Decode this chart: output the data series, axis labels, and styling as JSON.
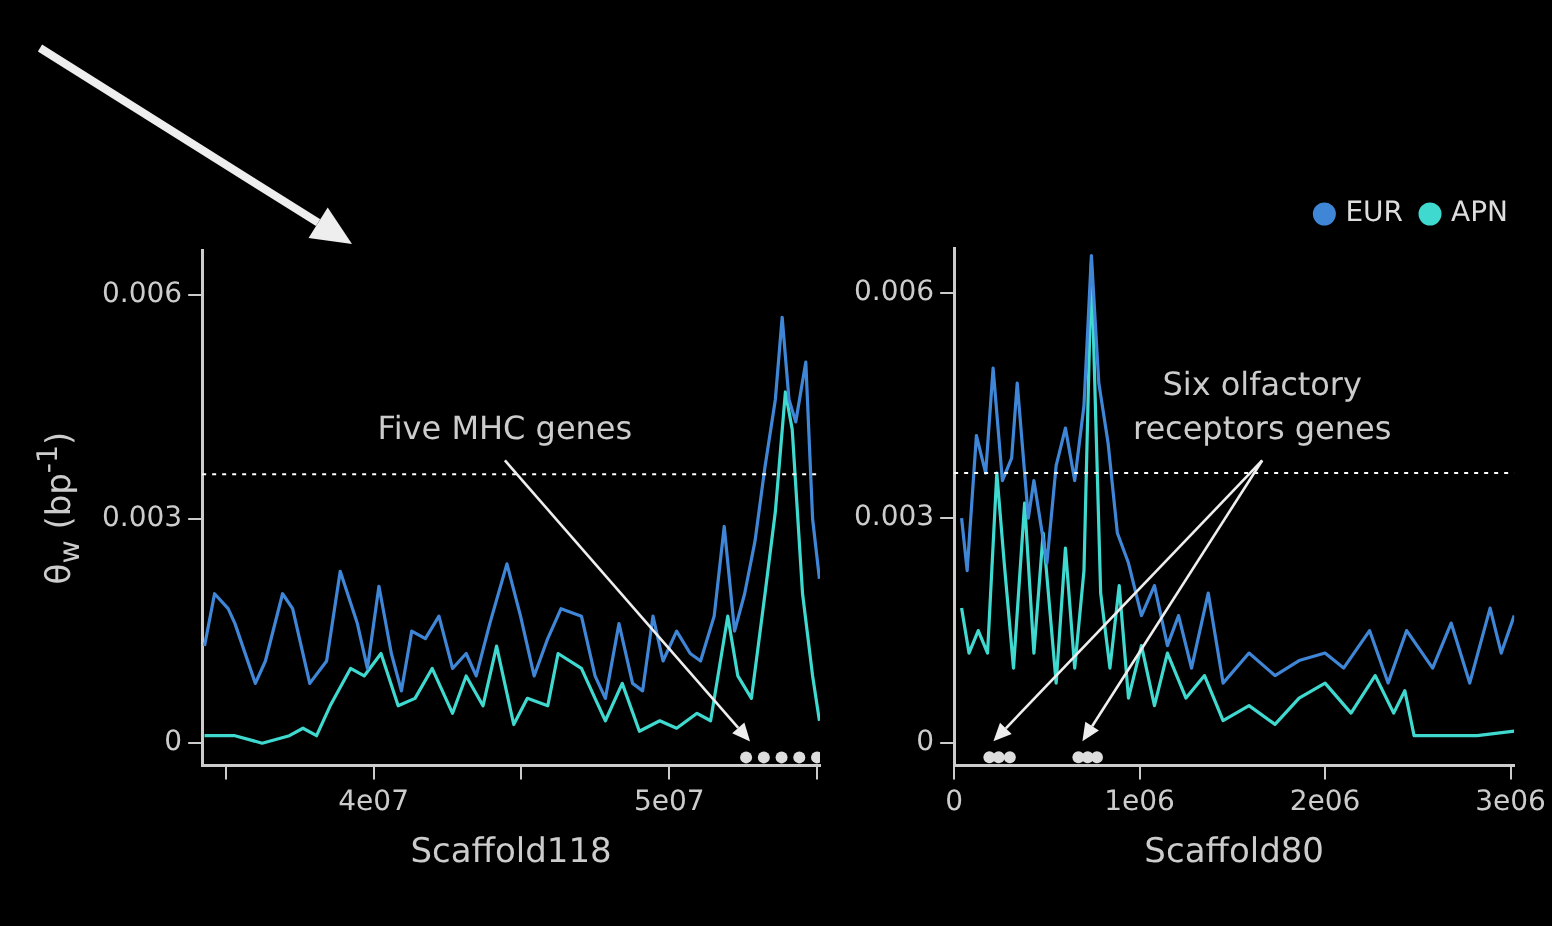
{
  "chart_data": [
    {
      "type": "line",
      "xlabel": "Scaffold118",
      "ylabel": "θ$_{w}$ (bp$^{-1}$)",
      "grid": false,
      "xlim": [
        34200000,
        55100000
      ],
      "ylim": [
        -0.0003,
        0.0066
      ],
      "xticks": [
        {
          "value": 35000000,
          "label": null
        },
        {
          "value": 40000000,
          "label": "4e07"
        },
        {
          "value": 45000000,
          "label": null
        },
        {
          "value": 50000000,
          "label": "5e07"
        },
        {
          "value": 55000000,
          "label": null
        }
      ],
      "yticks": [
        0,
        0.003,
        0.006
      ],
      "ref_lines": [
        {
          "axis": "y",
          "value": 0.0036,
          "color": "#ffffff",
          "line_style": "dotted"
        }
      ],
      "annotations": [
        "Five MHC genes"
      ],
      "series": [
        {
          "color": "#3f86d6",
          "x": [
            34280000,
            34620000,
            35080000,
            35310000,
            36000000,
            36340000,
            36920000,
            37260000,
            37840000,
            38410000,
            38870000,
            39450000,
            39790000,
            40180000,
            40600000,
            40940000,
            41290000,
            41750000,
            42210000,
            42670000,
            43130000,
            43470000,
            43930000,
            44510000,
            44970000,
            45430000,
            45890000,
            46340000,
            47030000,
            47490000,
            47840000,
            48300000,
            48760000,
            49100000,
            49450000,
            49790000,
            50250000,
            50710000,
            51060000,
            51520000,
            51860000,
            52210000,
            52550000,
            52900000,
            53240000,
            53590000,
            53820000,
            54050000,
            54280000,
            54620000,
            54850000,
            55080000
          ],
          "values": [
            0.0013,
            0.002,
            0.0018,
            0.0016,
            0.0008,
            0.0011,
            0.002,
            0.0018,
            0.0008,
            0.0011,
            0.0023,
            0.0016,
            0.001,
            0.0021,
            0.0012,
            0.0007,
            0.0015,
            0.0014,
            0.0017,
            0.001,
            0.0012,
            0.0009,
            0.0016,
            0.0024,
            0.0017,
            0.0009,
            0.0014,
            0.0018,
            0.0017,
            0.0009,
            0.0006,
            0.0016,
            0.0008,
            0.0007,
            0.0017,
            0.0011,
            0.0015,
            0.0012,
            0.0011,
            0.0017,
            0.0029,
            0.0015,
            0.002,
            0.0027,
            0.0037,
            0.0046,
            0.0057,
            0.0046,
            0.0043,
            0.0051,
            0.003,
            0.0022
          ]
        },
        {
          "color": "#3fd9cf",
          "x": [
            34280000,
            35310000,
            36230000,
            37150000,
            37610000,
            38070000,
            38530000,
            39220000,
            39680000,
            40250000,
            40830000,
            41400000,
            41980000,
            42670000,
            43130000,
            43700000,
            44160000,
            44740000,
            45200000,
            45890000,
            46240000,
            47030000,
            47490000,
            47840000,
            48410000,
            48990000,
            49680000,
            50250000,
            50940000,
            51400000,
            51980000,
            52320000,
            52780000,
            53240000,
            53590000,
            53930000,
            54160000,
            54510000,
            54850000,
            55080000
          ],
          "values": [
            0.0001,
            0.0001,
            0,
            0.0001,
            0.0002,
            0.0001,
            0.0005,
            0.001,
            0.0009,
            0.0012,
            0.0005,
            0.0006,
            0.001,
            0.0004,
            0.0009,
            0.0005,
            0.0013,
            0.00025,
            0.0006,
            0.0005,
            0.0012,
            0.001,
            0.0006,
            0.0003,
            0.0008,
            0.00016,
            0.0003,
            0.0002,
            0.0004,
            0.0003,
            0.0017,
            0.0009,
            0.0006,
            0.002,
            0.0031,
            0.0047,
            0.0042,
            0.002,
            0.0009,
            0.0003
          ]
        },
        {
          "type": "scatter",
          "marker": "circle",
          "color": "#dddddd",
          "x": [
            52600000,
            53200000,
            53800000,
            54400000,
            55000000
          ],
          "values": [
            -0.00019,
            -0.00019,
            -0.00019,
            -0.00019,
            -0.00019
          ]
        }
      ]
    },
    {
      "type": "line",
      "xlabel": "Scaffold80",
      "grid": false,
      "legend": "top right",
      "xlim": [
        0,
        3020000
      ],
      "ylim": [
        -0.0003,
        0.0066
      ],
      "xticks": [
        0,
        {
          "value": 1000000,
          "label": "1e06"
        },
        {
          "value": 2000000,
          "label": "2e06"
        },
        {
          "value": 3000000,
          "label": "3e06"
        }
      ],
      "yticks": [
        0,
        0.003,
        0.006
      ],
      "ref_lines": [
        {
          "axis": "y",
          "value": 0.0036,
          "color": "#ffffff",
          "line_style": "dotted"
        }
      ],
      "annotations": [
        "Six olfactory\nreceptors genes"
      ],
      "series": [
        {
          "name": "EUR",
          "color": "#3f86d6",
          "x": [
            40000,
            70000,
            120000,
            170000,
            210000,
            260000,
            310000,
            340000,
            400000,
            430000,
            500000,
            550000,
            600000,
            650000,
            700000,
            740000,
            780000,
            830000,
            880000,
            940000,
            1010000,
            1080000,
            1150000,
            1210000,
            1280000,
            1370000,
            1450000,
            1590000,
            1730000,
            1860000,
            2000000,
            2100000,
            2240000,
            2340000,
            2440000,
            2580000,
            2680000,
            2780000,
            2890000,
            2950000,
            3020000
          ],
          "values": [
            0.003,
            0.0023,
            0.0041,
            0.0036,
            0.005,
            0.0035,
            0.0038,
            0.0048,
            0.003,
            0.0035,
            0.0024,
            0.0037,
            0.0042,
            0.0035,
            0.0045,
            0.0065,
            0.0048,
            0.004,
            0.0028,
            0.0024,
            0.0017,
            0.0021,
            0.0013,
            0.0017,
            0.001,
            0.002,
            0.0008,
            0.0012,
            0.0009,
            0.0011,
            0.0012,
            0.001,
            0.0015,
            0.0008,
            0.0015,
            0.001,
            0.0016,
            0.0008,
            0.0018,
            0.0012,
            0.0017
          ]
        },
        {
          "name": "APN",
          "color": "#3fd9cf",
          "x": [
            40000,
            80000,
            130000,
            180000,
            230000,
            270000,
            320000,
            380000,
            430000,
            480000,
            550000,
            600000,
            650000,
            700000,
            740000,
            790000,
            840000,
            890000,
            940000,
            1010000,
            1080000,
            1150000,
            1250000,
            1350000,
            1450000,
            1590000,
            1730000,
            1860000,
            2000000,
            2140000,
            2270000,
            2370000,
            2430000,
            2480000,
            2650000,
            2820000,
            3020000
          ],
          "values": [
            0.0018,
            0.0012,
            0.0015,
            0.0012,
            0.0036,
            0.0024,
            0.001,
            0.0032,
            0.0012,
            0.0028,
            0.0008,
            0.0026,
            0.001,
            0.0023,
            0.0064,
            0.002,
            0.001,
            0.0021,
            0.0006,
            0.0013,
            0.0005,
            0.0012,
            0.0006,
            0.0009,
            0.0003,
            0.0005,
            0.00025,
            0.0006,
            0.0008,
            0.0004,
            0.0009,
            0.0004,
            0.0007,
            0.0001,
            0.0001,
            0.0001,
            0.00016
          ]
        },
        {
          "type": "scatter",
          "marker": "circle",
          "color": "#dddddd",
          "x": [
            190000,
            240000,
            300000,
            670000,
            720000,
            770000
          ],
          "values": [
            -0.00019,
            -0.00019,
            -0.00019,
            -0.00019,
            -0.00019,
            -0.00019
          ]
        }
      ]
    }
  ]
}
